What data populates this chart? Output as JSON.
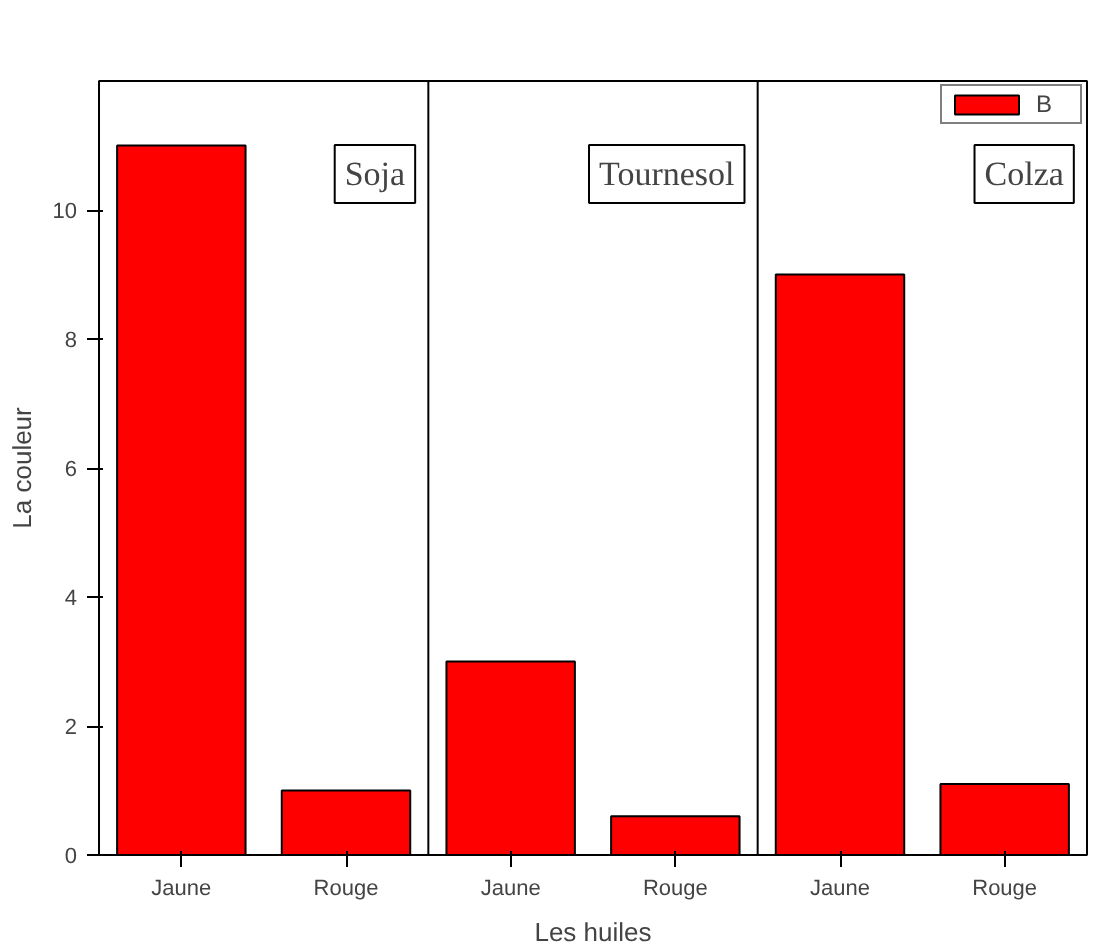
{
  "chart_data": {
    "type": "bar",
    "xlabel": "Les huiles",
    "ylabel": "La couleur",
    "categories": [
      "Jaune",
      "Rouge",
      "Jaune",
      "Rouge",
      "Jaune",
      "Rouge"
    ],
    "series": [
      {
        "name": "B",
        "color": "#ff0000",
        "values": [
          11,
          1,
          3,
          0.6,
          9,
          1.1
        ]
      }
    ],
    "ylim": [
      0,
      12
    ],
    "yticks": [
      0,
      2,
      4,
      6,
      8,
      10
    ],
    "annotations": [
      "Soja",
      "Tournesol",
      "Colza"
    ],
    "grid": false,
    "legend": "top right"
  }
}
